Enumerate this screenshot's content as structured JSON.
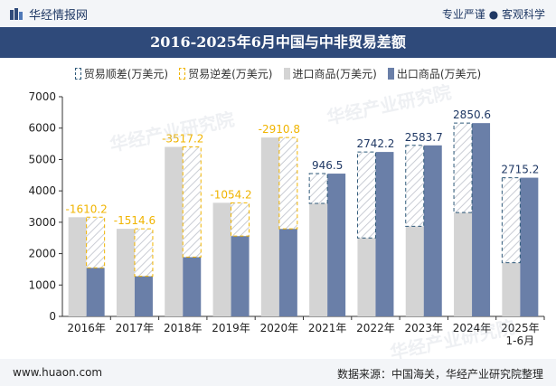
{
  "header": {
    "brand": "华经情报网",
    "tagline": "专业严谨 ● 客观科学"
  },
  "footer": {
    "site": "www.huaon.com",
    "source": "数据来源：中国海关，华经产业研究院整理"
  },
  "watermark": "华经产业研究院",
  "colors": {
    "title_bg": "#2f4a7a",
    "surplus": "#2f5a7a",
    "deficit": "#f0b400",
    "import": "#d4d4d4",
    "export": "#6a7fa8"
  },
  "chart_data": {
    "type": "bar",
    "title": "2016-2025年6月中国与中非贸易差额",
    "categories": [
      "2016年",
      "2017年",
      "2018年",
      "2019年",
      "2020年",
      "2021年",
      "2022年",
      "2023年",
      "2024年",
      "2025年\n1-6月"
    ],
    "series": [
      {
        "name": "贸易顺差(万美元)",
        "values": [
          null,
          null,
          null,
          null,
          null,
          946.5,
          2742.2,
          2583.7,
          2850.6,
          2715.2
        ]
      },
      {
        "name": "贸易逆差(万美元)",
        "values": [
          -1610.2,
          -1514.6,
          -3517.2,
          -1054.2,
          -2910.8,
          null,
          null,
          null,
          null,
          null
        ]
      },
      {
        "name": "进口商品(万美元)",
        "values": [
          3160,
          2790,
          5400,
          3620,
          5700,
          3600,
          2500,
          2870,
          3310,
          1710
        ]
      },
      {
        "name": "出口商品(万美元)",
        "values": [
          1550,
          1280,
          1890,
          2560,
          2790,
          4550,
          5240,
          5450,
          6160,
          4420
        ]
      }
    ],
    "data_labels": [
      "-1610.2",
      "-1514.6",
      "-3517.2",
      "-1054.2",
      "-2910.8",
      "946.5",
      "2742.2",
      "2583.7",
      "2850.6",
      "2715.2"
    ],
    "ylim": [
      0,
      7000
    ],
    "yticks": [
      "0",
      "1000",
      "2000",
      "3000",
      "4000",
      "5000",
      "6000",
      "7000"
    ],
    "grid": false,
    "legend_position": "top"
  }
}
